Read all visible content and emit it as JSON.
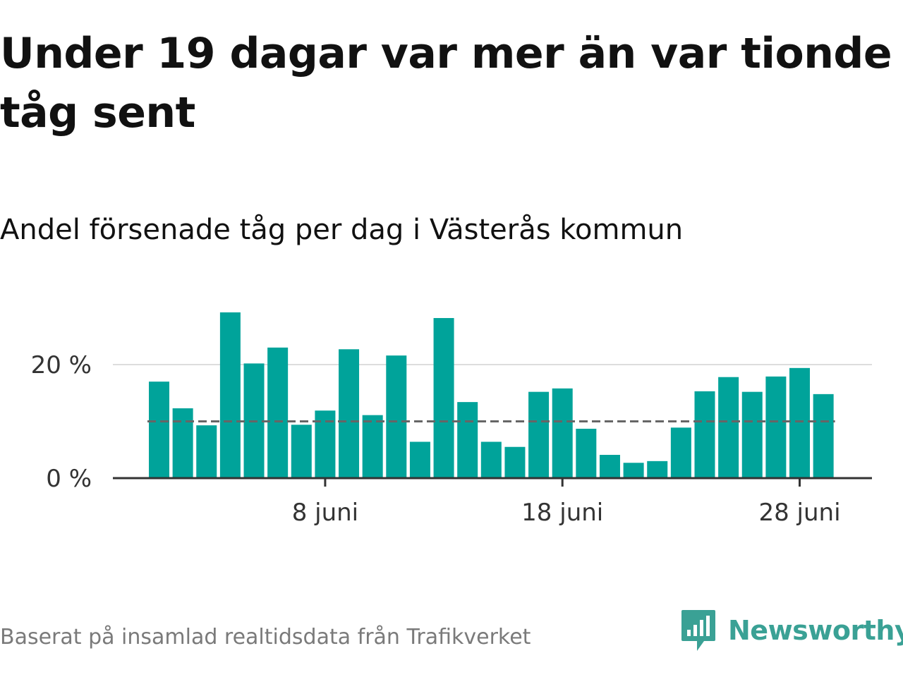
{
  "title": "Under 19 dagar var mer än var tionde tåg sent",
  "subtitle": "Andel försenade tåg per dag i Västerås kommun",
  "footer": {
    "source": "Baserat på insamlad realtidsdata från Trafikverket",
    "brand": "Newsworthy"
  },
  "colors": {
    "bar": "#00a39a",
    "reference_line": "#666666",
    "gridline": "#dddddd",
    "baseline": "#333333",
    "brand": "#3aa195"
  },
  "chart_data": {
    "type": "bar",
    "x_start": "1 juni",
    "x_end": "30 juni",
    "y_unit": "%",
    "values": [
      17,
      12.3,
      9.3,
      29.2,
      20.2,
      23,
      9.4,
      11.9,
      22.7,
      11.1,
      21.6,
      6.4,
      28.2,
      13.4,
      6.4,
      5.5,
      15.2,
      15.8,
      8.7,
      4.1,
      2.7,
      3,
      8.9,
      15.3,
      17.8,
      15.2,
      17.9,
      19.4,
      14.8
    ],
    "reference_line": 10,
    "ylim": [
      0,
      30
    ],
    "y_ticks": [
      {
        "value": 0,
        "label": "0 %"
      },
      {
        "value": 20,
        "label": "20 %"
      }
    ],
    "x_ticks": [
      {
        "day": 8,
        "label": "8 juni"
      },
      {
        "day": 18,
        "label": "18 juni"
      },
      {
        "day": 28,
        "label": "28 juni"
      }
    ],
    "grid": true
  }
}
